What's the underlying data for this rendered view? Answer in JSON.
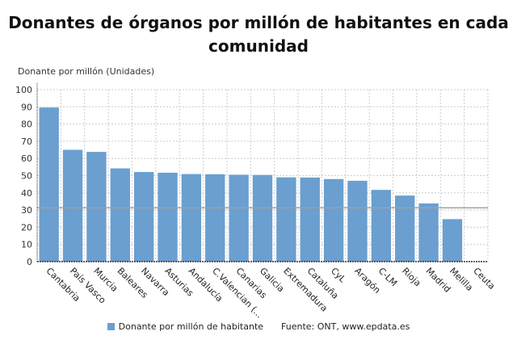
{
  "chart_data": {
    "type": "bar",
    "title": "Donantes de órganos por millón de habitantes en cada comunidad",
    "ylabel": "Donante por millón (Unidades)",
    "xlabel": "",
    "categories": [
      "Cantabria",
      "País Vasco",
      "Murcia",
      "Baleares",
      "Navarra",
      "Asturias",
      "Andalucía",
      "C.Valencian (...",
      "Canarias",
      "Galicia",
      "Extremadura",
      "Cataluña",
      "CyL",
      "Aragón",
      "C-LM",
      "Rioja",
      "Madrid",
      "Melilla",
      "Ceuta"
    ],
    "series": [
      {
        "name": "Donante por millón de habitante",
        "values": [
          89.6,
          65,
          63.8,
          54.2,
          52.1,
          51.7,
          50.9,
          50.8,
          50.5,
          50.4,
          49,
          48.9,
          48,
          47,
          41.7,
          38.4,
          33.8,
          24.7,
          0
        ]
      }
    ],
    "reference_line": 31.3,
    "ylim": [
      0,
      100
    ],
    "yticks": [
      0,
      10,
      20,
      30,
      40,
      50,
      60,
      70,
      80,
      90,
      100
    ],
    "grid": true,
    "legend": "bottom",
    "colors": {
      "bar": "#6a9fcf",
      "reference": "#a0a0a0"
    }
  },
  "source": "Fuente: ONT, www.epdata.es"
}
